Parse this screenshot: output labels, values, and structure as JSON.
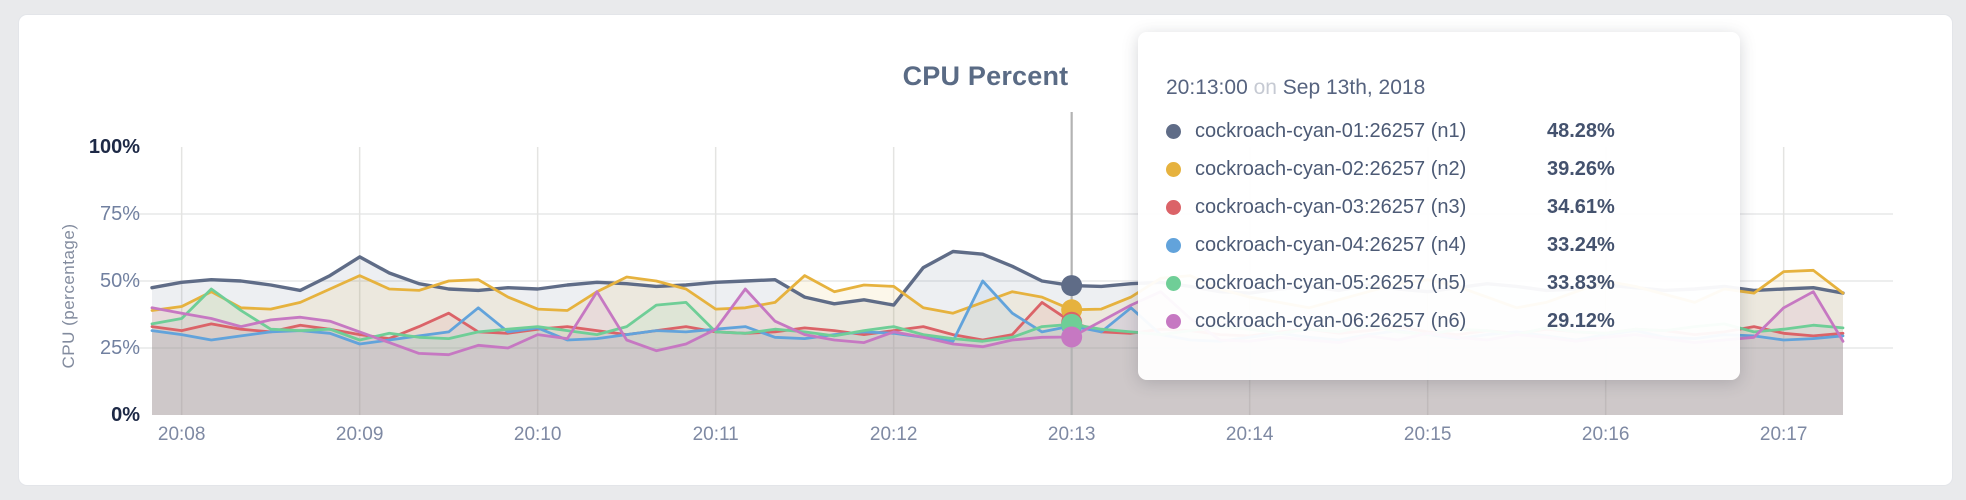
{
  "card": {
    "title": "CPU Percent"
  },
  "chart_data": {
    "type": "line",
    "title": "CPU Percent",
    "xlabel": "",
    "ylabel": "CPU (percentage)",
    "ylim": [
      0,
      100
    ],
    "grid": true,
    "legend_position": "tooltip",
    "sample_interval_seconds": 10,
    "x_start_time": "20:07:50",
    "x_end_time": "20:17:20",
    "y_ticks": [
      {
        "label": "0%",
        "value": 0,
        "strong": true
      },
      {
        "label": "25%",
        "value": 25,
        "strong": false
      },
      {
        "label": "50%",
        "value": 50,
        "strong": false
      },
      {
        "label": "75%",
        "value": 75,
        "strong": false
      },
      {
        "label": "100%",
        "value": 100,
        "strong": true
      }
    ],
    "y_gridlines": [
      25,
      50,
      75
    ],
    "x_ticks": [
      {
        "label": "20:08",
        "index": 1
      },
      {
        "label": "20:09",
        "index": 7
      },
      {
        "label": "20:10",
        "index": 13
      },
      {
        "label": "20:11",
        "index": 19
      },
      {
        "label": "20:12",
        "index": 25
      },
      {
        "label": "20:13",
        "index": 31
      },
      {
        "label": "20:14",
        "index": 37
      },
      {
        "label": "20:15",
        "index": 43
      },
      {
        "label": "20:16",
        "index": 49
      },
      {
        "label": "20:17",
        "index": 55
      }
    ],
    "series": [
      {
        "name": "cockroach-cyan-01:26257 (n1)",
        "color": "#5f6c87",
        "values": [
          47.5,
          49.5,
          50.5,
          50,
          48.5,
          46.5,
          52,
          59,
          53,
          49,
          47,
          46.5,
          47.5,
          47,
          48.5,
          49.5,
          49,
          48,
          48.5,
          49.5,
          50,
          50.5,
          44,
          41.5,
          43,
          41,
          55,
          61,
          60,
          55.5,
          50,
          48.28,
          48,
          49,
          49.5,
          48,
          46,
          45.5,
          47,
          48,
          46.5,
          48.5,
          47,
          46,
          47.5,
          49,
          48,
          46.5,
          47,
          48.5,
          47.5,
          46.5,
          47,
          48,
          46.5,
          47,
          47.5,
          45.5
        ]
      },
      {
        "name": "cockroach-cyan-02:26257 (n2)",
        "color": "#e6b23e",
        "values": [
          39,
          40.5,
          46,
          40,
          39.5,
          42,
          47,
          52,
          47,
          46.5,
          50,
          50.5,
          44,
          39.5,
          39,
          46,
          51.5,
          50,
          47,
          39.5,
          40,
          42,
          52,
          46,
          48.5,
          48,
          40,
          38,
          42,
          46,
          44,
          39.26,
          39.5,
          44,
          51,
          52,
          47,
          44,
          42,
          40,
          43,
          46,
          49,
          50.5,
          48,
          44,
          40,
          42,
          46,
          50,
          48,
          45,
          42,
          47,
          45.5,
          53.5,
          54,
          45.5
        ]
      },
      {
        "name": "cockroach-cyan-03:26257 (n3)",
        "color": "#db6368",
        "values": [
          33,
          31.5,
          34,
          32,
          31,
          33.5,
          32,
          30,
          28.5,
          33,
          38,
          31,
          30.5,
          32,
          33,
          31.5,
          30,
          31.5,
          33,
          31,
          30.5,
          31,
          32.5,
          31.5,
          30,
          31.5,
          33,
          30,
          28,
          30,
          42,
          34.61,
          31,
          30.5,
          32,
          31.5,
          30,
          29.5,
          31,
          32,
          30.5,
          31.5,
          33,
          31,
          30,
          31.5,
          30.5,
          32,
          31,
          30.5,
          32,
          31.5,
          30,
          31,
          33,
          30.5,
          29.5,
          30.5
        ]
      },
      {
        "name": "cockroach-cyan-04:26257 (n4)",
        "color": "#62a3db",
        "values": [
          31.5,
          30,
          28,
          29.5,
          31,
          31.5,
          30.5,
          26.5,
          28,
          29.5,
          31,
          40,
          31,
          32.5,
          28,
          28.5,
          30,
          31.5,
          31,
          32,
          33,
          29,
          28.5,
          30,
          31,
          30.5,
          29,
          27.5,
          50,
          38,
          31,
          33.24,
          31,
          40,
          30,
          28,
          27.5,
          29,
          30.5,
          29,
          28,
          30,
          31.5,
          30,
          28.5,
          30,
          31,
          29.5,
          28,
          30,
          31.5,
          29,
          28.5,
          30,
          29.5,
          28,
          28.5,
          29.5
        ]
      },
      {
        "name": "cockroach-cyan-05:26257 (n5)",
        "color": "#6fce97",
        "values": [
          34,
          36,
          47,
          39,
          32,
          31.5,
          32,
          28,
          30.5,
          29,
          28.5,
          31,
          32,
          33,
          31.5,
          30,
          33,
          41,
          42,
          31,
          30.5,
          32,
          31,
          29.5,
          31.5,
          33,
          30,
          28.5,
          27.5,
          29,
          33,
          33.83,
          32,
          31,
          30,
          31.5,
          33,
          32,
          30.5,
          32,
          31,
          33.5,
          31,
          30,
          32,
          31.5,
          30,
          32.5,
          31,
          30.5,
          32,
          31.5,
          33,
          34,
          31,
          32,
          33.5,
          32.5
        ]
      },
      {
        "name": "cockroach-cyan-06:26257 (n6)",
        "color": "#c678c2",
        "values": [
          40,
          38,
          36,
          33,
          35.5,
          36.5,
          35,
          31,
          27,
          23,
          22.5,
          26,
          25,
          30,
          28.5,
          46,
          28,
          24,
          26.5,
          32,
          47,
          35,
          30,
          28,
          27,
          31,
          29,
          26.5,
          25.5,
          28,
          29,
          29.12,
          35,
          41,
          46,
          36,
          28,
          27.5,
          29,
          28,
          27,
          29.5,
          28,
          30.5,
          29,
          28,
          30,
          29,
          27.5,
          29,
          30,
          28.5,
          27,
          28,
          29,
          40,
          46,
          27.5
        ]
      }
    ]
  },
  "tooltip": {
    "time": "20:13:00",
    "conj": "on",
    "date": "Sep 13th, 2018",
    "hover_index": 31,
    "rows": [
      {
        "label": "cockroach-cyan-01:26257 (n1)",
        "value": "48.28%",
        "color": "#5f6c87"
      },
      {
        "label": "cockroach-cyan-02:26257 (n2)",
        "value": "39.26%",
        "color": "#e6b23e"
      },
      {
        "label": "cockroach-cyan-03:26257 (n3)",
        "value": "34.61%",
        "color": "#db6368"
      },
      {
        "label": "cockroach-cyan-04:26257 (n4)",
        "value": "33.24%",
        "color": "#62a3db"
      },
      {
        "label": "cockroach-cyan-05:26257 (n5)",
        "value": "33.83%",
        "color": "#6fce97"
      },
      {
        "label": "cockroach-cyan-06:26257 (n6)",
        "value": "29.12%",
        "color": "#c678c2"
      }
    ]
  },
  "colors": {
    "page_background": "#e9eaec",
    "card_background": "#ffffff",
    "title": "#5a6b85",
    "hover_guideline": "#b3b3b3"
  }
}
